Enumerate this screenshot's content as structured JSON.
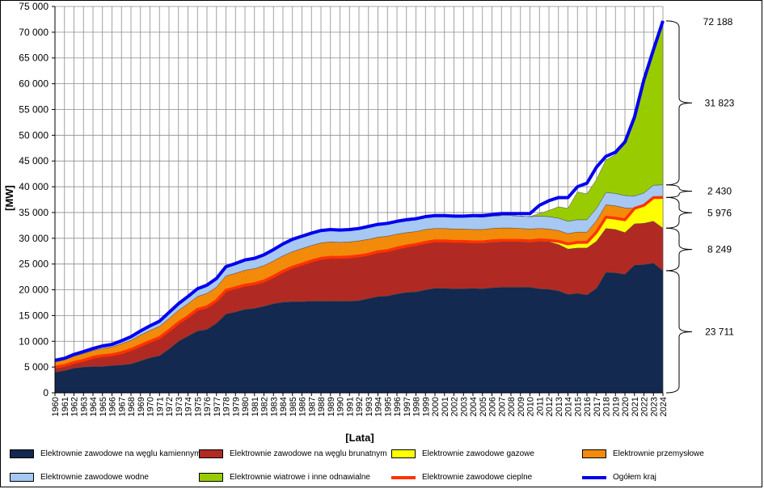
{
  "chart_data": {
    "type": "area",
    "xlabel": "[Lata]",
    "ylabel": "[MW]",
    "ylim": [
      0,
      75000
    ],
    "yticks": [
      "0",
      "5 000",
      "10 000",
      "15 000",
      "20 000",
      "25 000",
      "30 000",
      "35 000",
      "40 000",
      "45 000",
      "50 000",
      "55 000",
      "60 000",
      "65 000",
      "70 000",
      "75 000"
    ],
    "grid": true,
    "legend_position": "bottom",
    "x": [
      1960,
      1961,
      1962,
      1963,
      1964,
      1965,
      1966,
      1967,
      1968,
      1969,
      1970,
      1971,
      1972,
      1973,
      1974,
      1975,
      1976,
      1977,
      1978,
      1979,
      1980,
      1981,
      1982,
      1983,
      1984,
      1985,
      1986,
      1987,
      1988,
      1989,
      1990,
      1991,
      1992,
      1993,
      1994,
      1995,
      1996,
      1997,
      1998,
      1999,
      2000,
      2001,
      2002,
      2003,
      2004,
      2005,
      2006,
      2007,
      2008,
      2009,
      2010,
      2011,
      2012,
      2013,
      2014,
      2015,
      2016,
      2017,
      2018,
      2019,
      2020,
      2021,
      2022,
      2023,
      2024
    ],
    "x_labels": [
      "1960",
      "1961",
      "1962",
      "1963",
      "1964",
      "1965",
      "1966",
      "1967",
      "1968",
      "1969",
      "1970",
      "1971",
      "1972",
      "1973",
      "1974",
      "1975",
      "1976",
      "1977",
      "1978",
      "1979",
      "1980",
      "1981",
      "1982",
      "1983",
      "1984",
      "1985",
      "1986",
      "1987",
      "1988",
      "1989",
      "1990",
      "1991",
      "1992",
      "1993",
      "1994",
      "1995",
      "1996",
      "1997",
      "1998",
      "1999",
      "2000",
      "2001",
      "2002",
      "2003",
      "2004",
      "2005",
      "2006",
      "2007",
      "2008",
      "2009",
      "2010",
      "2011",
      "2012",
      "2013",
      "2014",
      "2015",
      "2016",
      "2017",
      "2018",
      "2019",
      "2020",
      "2021",
      "2022",
      "2023",
      "2024"
    ],
    "series": [
      {
        "name": "Elektrownie zawodowe na węglu kamiennym",
        "kind": "area",
        "color": "#13294f",
        "values": [
          4000,
          4300,
          4800,
          5000,
          5100,
          5100,
          5300,
          5400,
          5600,
          6200,
          6800,
          7200,
          8500,
          10000,
          11000,
          12000,
          12300,
          13500,
          15300,
          15700,
          16200,
          16400,
          16800,
          17300,
          17600,
          17700,
          17700,
          17800,
          17800,
          17800,
          17800,
          17800,
          17900,
          18300,
          18700,
          18800,
          19200,
          19500,
          19600,
          20000,
          20300,
          20300,
          20200,
          20200,
          20300,
          20200,
          20400,
          20500,
          20500,
          20500,
          20500,
          20200,
          20100,
          19800,
          19100,
          19300,
          19000,
          20300,
          23400,
          23300,
          23000,
          24800,
          24900,
          25200,
          23711
        ]
      },
      {
        "name": "Elektrownie zawodowe na węglu brunatnym",
        "kind": "area",
        "color": "#b02a23",
        "values": [
          1000,
          1000,
          1100,
          1300,
          1800,
          2100,
          2100,
          2400,
          2800,
          3000,
          3200,
          3500,
          3600,
          3600,
          3800,
          4200,
          4400,
          4400,
          4600,
          4700,
          4700,
          4800,
          4900,
          5300,
          6000,
          6700,
          7300,
          7800,
          8300,
          8500,
          8500,
          8600,
          8700,
          8600,
          8700,
          8800,
          8900,
          9000,
          9200,
          9200,
          9200,
          9200,
          9200,
          9200,
          8800,
          8800,
          8800,
          8800,
          8800,
          8800,
          8700,
          9200,
          9200,
          9000,
          8800,
          8800,
          9100,
          9100,
          8500,
          8400,
          8100,
          8000,
          8000,
          8100,
          8249
        ]
      },
      {
        "name": "Elektrownie zawodowe gazowe",
        "kind": "area",
        "color": "#ffff00",
        "values": [
          0,
          0,
          0,
          0,
          0,
          0,
          0,
          0,
          0,
          0,
          0,
          0,
          0,
          0,
          0,
          0,
          0,
          0,
          0,
          0,
          0,
          0,
          0,
          0,
          0,
          0,
          0,
          0,
          0,
          0,
          0,
          0,
          0,
          0,
          0,
          0,
          0,
          0,
          0,
          0,
          0,
          0,
          0,
          0,
          200,
          300,
          300,
          300,
          300,
          300,
          300,
          300,
          300,
          600,
          1000,
          1100,
          1100,
          1800,
          2200,
          2200,
          2500,
          3000,
          3500,
          4600,
          5976
        ]
      },
      {
        "name": "Elektrownie przemysłowe",
        "kind": "area",
        "color": "#f28a0a",
        "values": [
          1000,
          1100,
          1200,
          1300,
          1300,
          1400,
          1500,
          1700,
          1800,
          2000,
          2100,
          2200,
          2300,
          2400,
          2500,
          2500,
          2600,
          2600,
          2800,
          2800,
          2900,
          2900,
          3000,
          3000,
          3000,
          3000,
          3000,
          3000,
          3000,
          3000,
          2900,
          2900,
          2900,
          2900,
          2800,
          2800,
          2700,
          2600,
          2500,
          2500,
          2400,
          2400,
          2400,
          2400,
          2400,
          2400,
          2400,
          2400,
          2400,
          2300,
          2300,
          2200,
          2200,
          2100,
          2000,
          2000,
          2000,
          2200,
          2400,
          2400,
          2300,
          0,
          0,
          0,
          0
        ]
      },
      {
        "name": "Elektrownie zawodowe wodne",
        "kind": "area",
        "color": "#a6c8f2",
        "values": [
          300,
          300,
          350,
          400,
          400,
          500,
          500,
          600,
          700,
          800,
          900,
          1000,
          1200,
          1300,
          1400,
          1500,
          1600,
          1700,
          1800,
          1900,
          2000,
          2000,
          2100,
          2200,
          2300,
          2400,
          2400,
          2400,
          2400,
          2400,
          2400,
          2400,
          2400,
          2500,
          2500,
          2500,
          2500,
          2500,
          2500,
          2500,
          2500,
          2500,
          2500,
          2500,
          2500,
          2400,
          2400,
          2400,
          2400,
          2400,
          2400,
          2400,
          2400,
          2400,
          2400,
          2400,
          2400,
          2400,
          2400,
          2400,
          2400,
          2400,
          2400,
          2400,
          2430
        ]
      },
      {
        "name": "Elektrownie wiatrowe i inne odnawialne",
        "kind": "area",
        "color": "#99cc00",
        "values": [
          0,
          0,
          0,
          0,
          0,
          0,
          0,
          0,
          0,
          0,
          0,
          0,
          0,
          0,
          0,
          0,
          0,
          0,
          0,
          0,
          0,
          0,
          0,
          0,
          0,
          0,
          0,
          0,
          0,
          0,
          0,
          0,
          0,
          0,
          0,
          0,
          0,
          0,
          0,
          0,
          0,
          0,
          0,
          0,
          0,
          0,
          0,
          0,
          0,
          0,
          0,
          500,
          1200,
          2200,
          2500,
          5400,
          5000,
          5600,
          6300,
          7500,
          10200,
          15000,
          22000,
          27200,
          31823
        ]
      },
      {
        "name": "Elektrownie zawodowe cieplne",
        "kind": "line",
        "color": "#ff3300",
        "values": [
          5000,
          5300,
          5900,
          6300,
          6900,
          7200,
          7400,
          7800,
          8400,
          9200,
          10000,
          10700,
          12100,
          13600,
          14800,
          16200,
          16700,
          17900,
          19900,
          20400,
          20900,
          21200,
          21700,
          22600,
          23600,
          24400,
          25000,
          25600,
          26100,
          26300,
          26300,
          26400,
          26600,
          26900,
          27400,
          27600,
          28100,
          28500,
          28800,
          29200,
          29500,
          29500,
          29400,
          29400,
          29300,
          29300,
          29500,
          29600,
          29600,
          29600,
          29500,
          29700,
          29600,
          29400,
          28900,
          29200,
          29200,
          31200,
          34100,
          33900,
          33600,
          35800,
          36400,
          37900,
          37936
        ]
      },
      {
        "name": "Ogółem kraj",
        "kind": "line",
        "color": "#0000ee",
        "values": [
          6300,
          6700,
          7450,
          8000,
          8600,
          9100,
          9400,
          10100,
          10900,
          12000,
          13000,
          13900,
          15600,
          17300,
          18700,
          20200,
          20900,
          22200,
          24500,
          25100,
          25800,
          26100,
          26800,
          27800,
          28900,
          29800,
          30400,
          31000,
          31500,
          31700,
          31600,
          31700,
          31900,
          32300,
          32700,
          32900,
          33300,
          33600,
          33800,
          34200,
          34400,
          34400,
          34300,
          34300,
          34400,
          34400,
          34600,
          34800,
          34800,
          34800,
          34800,
          36400,
          37300,
          37900,
          37900,
          40000,
          40700,
          43800,
          45900,
          46700,
          48700,
          53500,
          60800,
          66600,
          72188
        ]
      }
    ],
    "annotations": [
      {
        "label": "72 188",
        "value": 72188,
        "type": "total"
      },
      {
        "label": "31 823",
        "from": 40365,
        "to": 72188
      },
      {
        "label": "2 430",
        "from": 37936,
        "to": 40365
      },
      {
        "label": "5 976",
        "from": 31960,
        "to": 37936
      },
      {
        "label": "8 249",
        "from": 23711,
        "to": 31960
      },
      {
        "label": "23 711",
        "from": 0,
        "to": 23711
      }
    ]
  }
}
